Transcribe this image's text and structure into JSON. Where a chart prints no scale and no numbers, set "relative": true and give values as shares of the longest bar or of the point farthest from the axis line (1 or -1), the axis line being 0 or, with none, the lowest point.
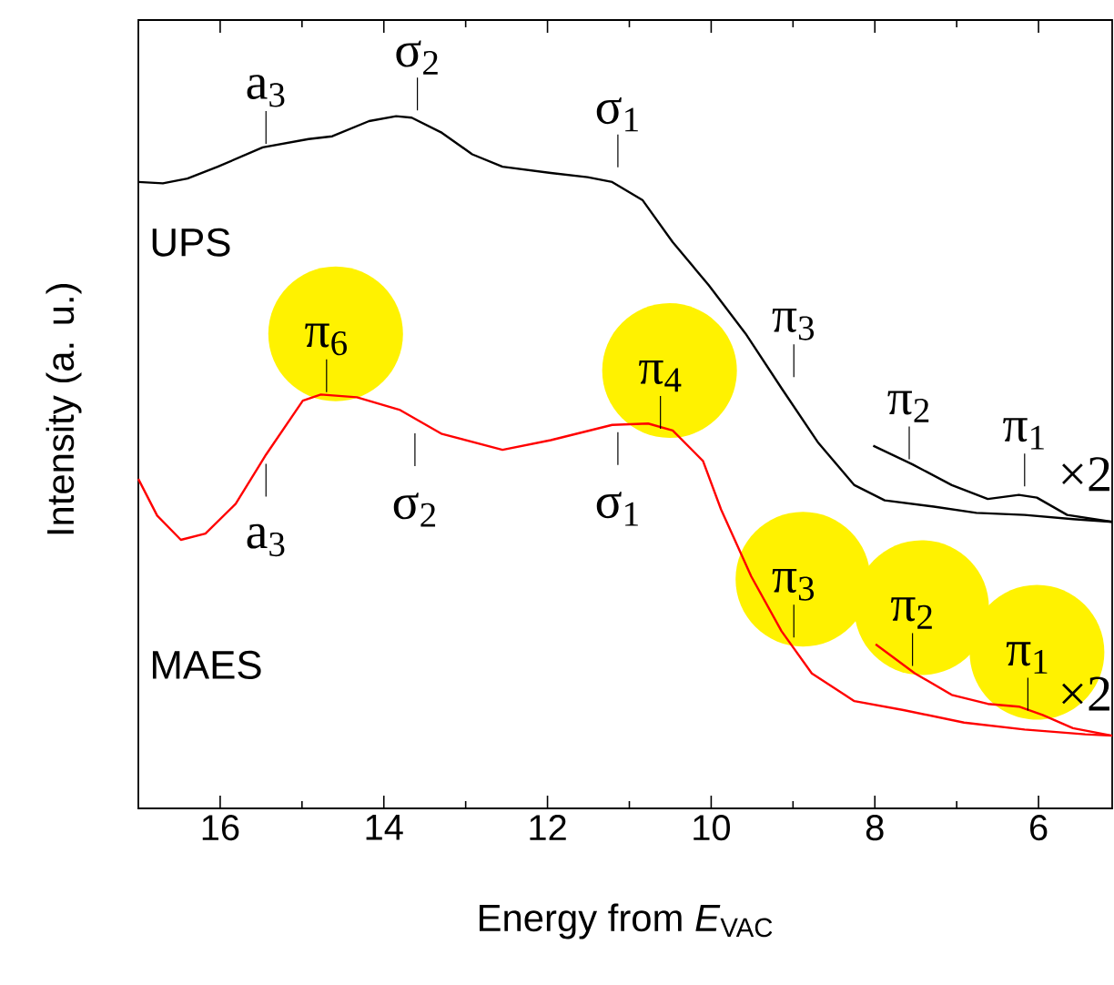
{
  "chart_data": {
    "type": "line",
    "relative": true,
    "xlabel": "Energy from *E*$_{VAC}$",
    "ylabel": "Intensity (a. u.)",
    "xlim": [
      17,
      5.1
    ],
    "xticks": [
      16,
      14,
      12,
      10,
      8,
      6
    ],
    "series": [
      {
        "name": "UPS",
        "color": "#000000",
        "x": [
          17.0,
          16.7,
          16.4,
          16.03,
          15.48,
          14.92,
          14.63,
          14.18,
          13.85,
          13.66,
          13.29,
          12.92,
          12.55,
          11.96,
          11.51,
          11.21,
          10.84,
          10.47,
          10.03,
          9.58,
          9.14,
          8.69,
          8.25,
          7.88,
          7.28,
          6.76,
          6.17,
          5.58,
          5.1
        ],
        "values": [
          0.905,
          0.903,
          0.91,
          0.927,
          0.955,
          0.967,
          0.971,
          0.993,
          1.0,
          0.998,
          0.976,
          0.945,
          0.927,
          0.918,
          0.912,
          0.905,
          0.879,
          0.818,
          0.756,
          0.686,
          0.607,
          0.528,
          0.467,
          0.445,
          0.436,
          0.427,
          0.424,
          0.418,
          0.414
        ]
      },
      {
        "color": "#000000",
        "x": [
          8.02,
          7.54,
          7.06,
          6.62,
          6.24,
          6.02,
          5.65,
          5.1
        ],
        "values": [
          0.524,
          0.497,
          0.467,
          0.447,
          0.453,
          0.449,
          0.424,
          0.414
        ]
      },
      {
        "name": "MAES",
        "color": "#ff0000",
        "x": [
          17.0,
          16.77,
          16.48,
          16.18,
          15.81,
          15.44,
          14.99,
          14.77,
          14.33,
          13.81,
          13.29,
          12.55,
          11.96,
          11.21,
          10.77,
          10.47,
          10.1,
          9.88,
          9.51,
          9.14,
          8.77,
          8.25,
          7.65,
          6.91,
          6.17,
          5.43,
          5.1
        ],
        "values": [
          0.476,
          0.423,
          0.388,
          0.397,
          0.44,
          0.511,
          0.589,
          0.598,
          0.594,
          0.576,
          0.541,
          0.518,
          0.532,
          0.554,
          0.556,
          0.546,
          0.502,
          0.432,
          0.335,
          0.256,
          0.195,
          0.155,
          0.142,
          0.124,
          0.114,
          0.107,
          0.105
        ]
      },
      {
        "color": "#ff0000",
        "x": [
          7.99,
          7.51,
          7.06,
          6.62,
          6.24,
          5.95,
          5.58,
          5.1
        ],
        "values": [
          0.237,
          0.195,
          0.164,
          0.151,
          0.147,
          0.135,
          0.116,
          0.105
        ]
      }
    ],
    "annotations": [
      {
        "text": "a$_{3}$",
        "x": 15.44,
        "y": 0.955
      },
      {
        "text": "σ$_{2}$",
        "x": 13.59,
        "y": 0.998
      },
      {
        "text": "σ$_{1}$",
        "x": 11.14,
        "y": 0.9
      },
      {
        "text": "π$_{3}$",
        "x": 8.99,
        "y": 0.581
      },
      {
        "text": "π$_{2}$",
        "x": 7.58,
        "y": 0.499
      },
      {
        "text": "π$_{1}$",
        "x": 6.17,
        "y": 0.452
      },
      {
        "text": "×2",
        "x": 5.43,
        "y": 0.42
      },
      {
        "text": "π$_{6}$",
        "x": 14.7,
        "y": 0.596
      },
      {
        "text": "a$_{3}$",
        "x": 15.44,
        "y": 0.511
      },
      {
        "text": "σ$_{2}$",
        "x": 13.62,
        "y": 0.563
      },
      {
        "text": "σ$_{1}$",
        "x": 11.14,
        "y": 0.554
      },
      {
        "text": "π$_{4}$",
        "x": 10.62,
        "y": 0.551
      },
      {
        "text": "π$_{3}$",
        "x": 8.99,
        "y": 0.231
      },
      {
        "text": "π$_{2}$",
        "x": 7.54,
        "y": 0.198
      },
      {
        "text": "π$_{1}$",
        "x": 6.13,
        "y": 0.144
      },
      {
        "text": "×2",
        "x": 5.43,
        "y": 0.113
      }
    ]
  }
}
